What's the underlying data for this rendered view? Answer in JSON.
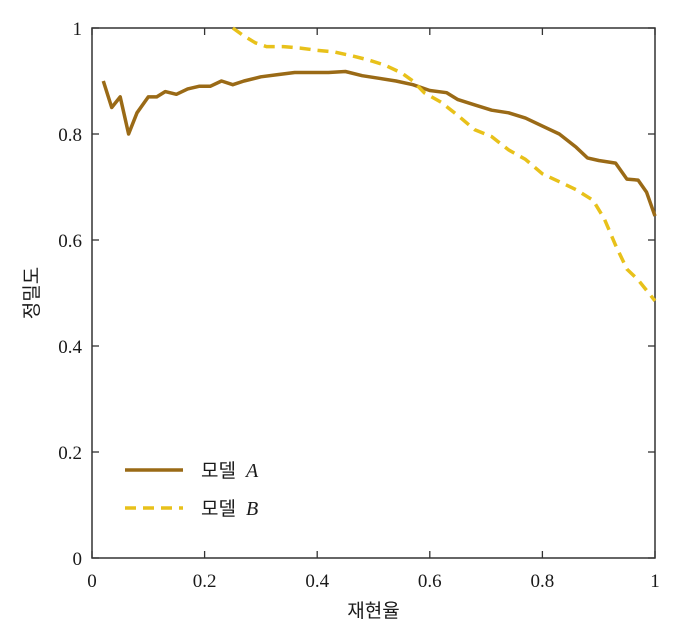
{
  "colors": {
    "series_a": "#9a6a16",
    "series_b": "#e8c11a",
    "axis": "#333333"
  },
  "chart_data": {
    "type": "line",
    "xlabel": "재현율",
    "ylabel": "정밀도",
    "xlim": [
      0,
      1
    ],
    "ylim": [
      0,
      1
    ],
    "xticks": [
      "0",
      "0.2",
      "0.4",
      "0.6",
      "0.8",
      "1"
    ],
    "yticks": [
      "0",
      "0.2",
      "0.4",
      "0.6",
      "0.8",
      "1"
    ],
    "grid": false,
    "legend_position": "bottom-left",
    "series": [
      {
        "name_prefix": "모델",
        "name_letter": "A",
        "style": "solid",
        "x": [
          0.02,
          0.035,
          0.05,
          0.065,
          0.08,
          0.1,
          0.115,
          0.13,
          0.15,
          0.17,
          0.19,
          0.21,
          0.23,
          0.25,
          0.27,
          0.3,
          0.33,
          0.36,
          0.39,
          0.42,
          0.45,
          0.48,
          0.51,
          0.54,
          0.57,
          0.6,
          0.63,
          0.65,
          0.68,
          0.71,
          0.74,
          0.77,
          0.8,
          0.83,
          0.86,
          0.88,
          0.9,
          0.93,
          0.95,
          0.97,
          0.985,
          1.0
        ],
        "y": [
          0.9,
          0.85,
          0.87,
          0.8,
          0.84,
          0.87,
          0.87,
          0.88,
          0.875,
          0.885,
          0.89,
          0.89,
          0.9,
          0.893,
          0.9,
          0.908,
          0.912,
          0.916,
          0.916,
          0.916,
          0.918,
          0.91,
          0.905,
          0.9,
          0.893,
          0.882,
          0.878,
          0.865,
          0.855,
          0.845,
          0.84,
          0.83,
          0.815,
          0.8,
          0.775,
          0.755,
          0.75,
          0.745,
          0.715,
          0.713,
          0.69,
          0.645
        ]
      },
      {
        "name_prefix": "모델",
        "name_letter": "B",
        "style": "dashed",
        "x": [
          0.25,
          0.27,
          0.29,
          0.31,
          0.34,
          0.37,
          0.4,
          0.43,
          0.46,
          0.49,
          0.52,
          0.55,
          0.57,
          0.59,
          0.62,
          0.65,
          0.68,
          0.71,
          0.74,
          0.77,
          0.8,
          0.83,
          0.86,
          0.89,
          0.91,
          0.93,
          0.95,
          0.97,
          0.985,
          1.0
        ],
        "y": [
          1.0,
          0.985,
          0.972,
          0.965,
          0.965,
          0.962,
          0.958,
          0.955,
          0.948,
          0.94,
          0.93,
          0.915,
          0.9,
          0.878,
          0.86,
          0.835,
          0.808,
          0.795,
          0.77,
          0.752,
          0.725,
          0.71,
          0.695,
          0.675,
          0.64,
          0.59,
          0.545,
          0.525,
          0.505,
          0.485
        ]
      }
    ]
  }
}
